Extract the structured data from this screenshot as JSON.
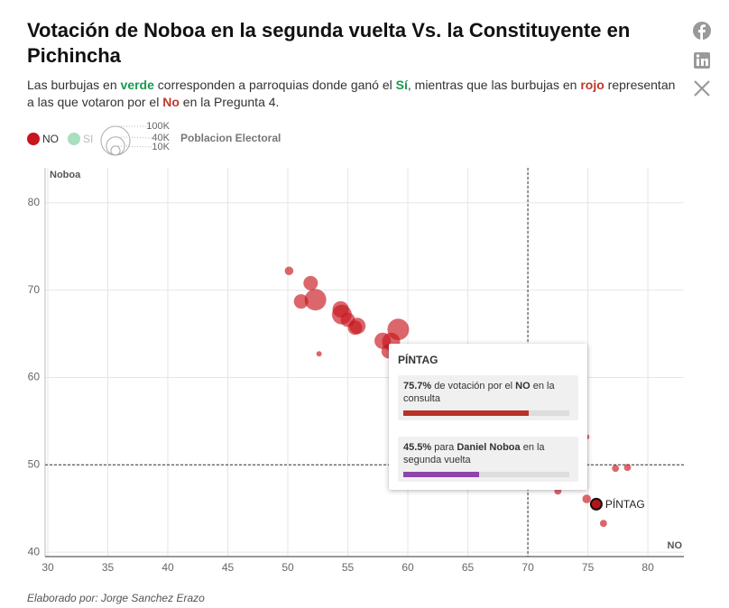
{
  "chart_data": {
    "type": "scatter",
    "title": "Votación de Noboa en la segunda vuelta Vs. la Constituyente en Pichincha",
    "subtitle": [
      "Las burbujas en ",
      "verde",
      " corresponden a parroquias donde ganó el ",
      "Sí",
      ", mientras que las burbujas en ",
      "rojo",
      " representan a las que votaron por el ",
      "No",
      " en la Pregunta 4."
    ],
    "x_label": "NO",
    "y_label": "Noboa",
    "xlim": [
      30,
      83
    ],
    "ylim": [
      39.5,
      84
    ],
    "xticks": [
      30,
      35,
      40,
      45,
      50,
      55,
      60,
      65,
      70,
      75,
      80
    ],
    "yticks": [
      40,
      50,
      60,
      70,
      80
    ],
    "grid": true,
    "reference_lines": {
      "x": 70,
      "y": 50
    },
    "size_legend": {
      "title": "Poblacion Electoral",
      "values": [
        {
          "value": 100000,
          "label": "100K"
        },
        {
          "value": 40000,
          "label": "40K"
        },
        {
          "value": 10000,
          "label": "10K"
        }
      ]
    },
    "series": [
      {
        "name": "NO",
        "color": "#c8161d",
        "x": [
          50.1,
          51.9,
          51.1,
          52.3,
          52.6,
          54.4,
          54.5,
          55.0,
          55.6,
          55.8,
          57.9,
          58.6,
          58.4,
          59.2,
          74.9,
          72.5,
          74.9,
          76.3,
          77.3,
          78.3
        ],
        "y": [
          72.2,
          70.8,
          68.7,
          68.9,
          62.7,
          67.8,
          67.2,
          66.6,
          65.7,
          65.9,
          64.2,
          64.1,
          63.0,
          65.5,
          53.2,
          47.0,
          46.1,
          43.3,
          49.6,
          49.7
        ],
        "sizes": [
          9000,
          25000,
          25000,
          56000,
          3500,
          32000,
          47000,
          25000,
          25000,
          32000,
          32000,
          39000,
          25000,
          56000,
          3500,
          6000,
          9000,
          6000,
          6000,
          6000
        ]
      },
      {
        "name": "SI",
        "color": "#a8dfc0",
        "x": [],
        "y": [],
        "sizes": []
      }
    ],
    "annotation": {
      "text": "PÍNTAG",
      "x": 75.7,
      "y": 45.5
    },
    "tooltip": {
      "title": "PÍNTAG",
      "items": [
        {
          "value": 75.7,
          "label": "75.7%",
          "parts": [
            " de votación por el ",
            "NO",
            " en la consulta"
          ],
          "color": "#b83227"
        },
        {
          "value": 45.5,
          "label": "45.5%",
          "parts": [
            " para ",
            "Daniel Noboa",
            " en la segunda vuelta"
          ],
          "color": "#8e44ad"
        }
      ]
    },
    "footer": "Elaborado por: Jorge Sanchez Erazo"
  }
}
